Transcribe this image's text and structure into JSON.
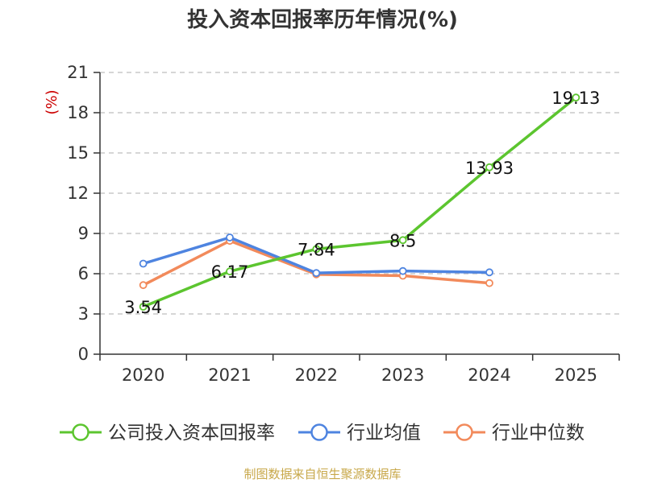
{
  "chart_data": {
    "type": "line",
    "title": "投入资本回报率历年情况(%)",
    "ylabel": "(%)",
    "xlabel": "",
    "categories": [
      "2020",
      "2021",
      "2022",
      "2023",
      "2024",
      "2025"
    ],
    "ylim": [
      0,
      21
    ],
    "yticks": [
      0,
      3,
      6,
      9,
      12,
      15,
      18,
      21
    ],
    "grid": true,
    "legend_position": "bottom",
    "series": [
      {
        "name": "公司投入资本回报率",
        "color": "#5cc52f",
        "values": [
          3.54,
          6.17,
          7.84,
          8.5,
          13.93,
          19.13
        ],
        "labels": [
          "3.54",
          "6.17",
          "7.84",
          "8.5",
          "13.93",
          "19.13"
        ]
      },
      {
        "name": "行业均值",
        "color": "#4e84e0",
        "values": [
          6.75,
          8.7,
          6.05,
          6.2,
          6.1,
          null
        ]
      },
      {
        "name": "行业中位数",
        "color": "#f28a5b",
        "values": [
          5.15,
          8.45,
          5.95,
          5.85,
          5.3,
          null
        ]
      }
    ]
  },
  "source": "制图数据来自恒生聚源数据库"
}
